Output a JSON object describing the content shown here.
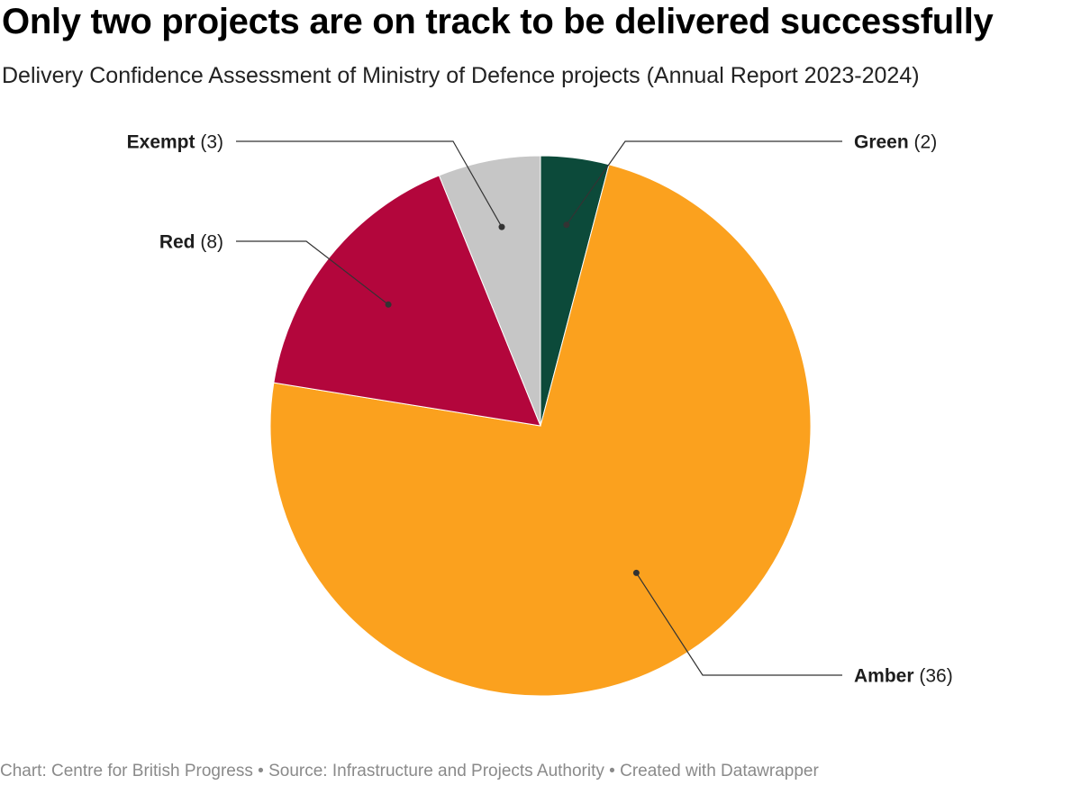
{
  "title": "Only two projects are on track to be delivered successfully",
  "subtitle": "Delivery Confidence Assessment of Ministry of Defence projects (Annual Report 2023-2024)",
  "footer": {
    "chart_credit": "Chart: Centre for British Progress",
    "separator": " • ",
    "source": "Source: Infrastructure and Projects Authority",
    "created_with": "Created with Datawrapper"
  },
  "chart_data": {
    "type": "pie",
    "title": "Only two projects are on track to be delivered successfully",
    "subtitle": "Delivery Confidence Assessment of Ministry of Defence projects (Annual Report 2023-2024)",
    "start": "12 o'clock",
    "direction": "clockwise",
    "slices": [
      {
        "label": "Green",
        "value": 2,
        "value_text": "(2)",
        "color": "#0c4a3a"
      },
      {
        "label": "Amber",
        "value": 36,
        "value_text": "(36)",
        "color": "#fba11e"
      },
      {
        "label": "Red",
        "value": 8,
        "value_text": "(8)",
        "color": "#b3063c"
      },
      {
        "label": "Exempt",
        "value": 3,
        "value_text": "(3)",
        "color": "#c6c6c6"
      }
    ]
  }
}
